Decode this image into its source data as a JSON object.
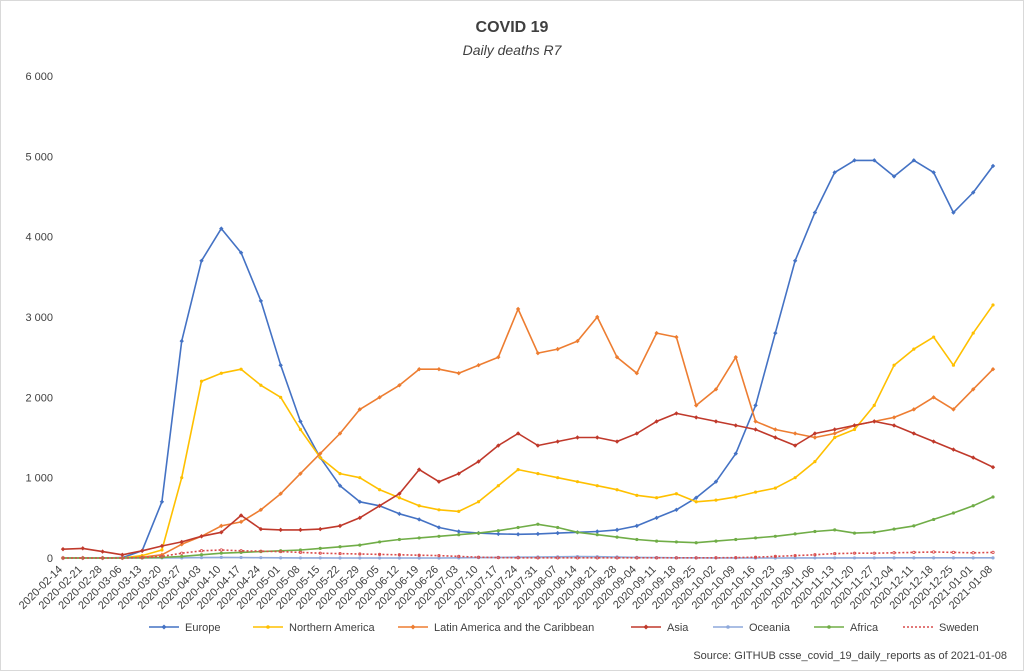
{
  "chart_data": {
    "type": "line",
    "title": "COVID 19",
    "subtitle": "Daily deaths R7",
    "ylim": [
      0,
      6000
    ],
    "y_ticks": [
      "0",
      "1 000",
      "2 000",
      "3 000",
      "4 000",
      "5 000",
      "6 000"
    ],
    "x_ticks": [
      "2020-02-14",
      "2020-02-21",
      "2020-02-28",
      "2020-03-06",
      "2020-03-13",
      "2020-03-20",
      "2020-03-27",
      "2020-04-03",
      "2020-04-10",
      "2020-04-17",
      "2020-04-24",
      "2020-05-01",
      "2020-05-08",
      "2020-05-15",
      "2020-05-22",
      "2020-05-29",
      "2020-06-05",
      "2020-06-12",
      "2020-06-19",
      "2020-06-26",
      "2020-07-03",
      "2020-07-10",
      "2020-07-17",
      "2020-07-24",
      "2020-07-31",
      "2020-08-07",
      "2020-08-14",
      "2020-08-21",
      "2020-08-28",
      "2020-09-04",
      "2020-09-11",
      "2020-09-18",
      "2020-09-25",
      "2020-10-02",
      "2020-10-09",
      "2020-10-16",
      "2020-10-23",
      "2020-10-30",
      "2020-11-06",
      "2020-11-13",
      "2020-11-20",
      "2020-11-27",
      "2020-12-04",
      "2020-12-11",
      "2020-12-18",
      "2020-12-25",
      "2021-01-01",
      "2021-01-08"
    ],
    "grid": false,
    "legend_position": "bottom",
    "series": [
      {
        "name": "Europe",
        "color": "#4472c4",
        "marker": "diamond",
        "values": [
          0,
          0,
          0,
          5,
          90,
          700,
          2700,
          3700,
          4100,
          3800,
          3200,
          2400,
          1700,
          1250,
          900,
          700,
          650,
          550,
          480,
          380,
          330,
          310,
          300,
          295,
          300,
          310,
          320,
          330,
          350,
          400,
          500,
          600,
          750,
          950,
          1300,
          1900,
          2800,
          3700,
          4300,
          4800,
          4950,
          4950,
          4750,
          4950,
          4800,
          4300,
          4550,
          4880
        ]
      },
      {
        "name": "Northern America",
        "color": "#ffc000",
        "marker": "dot",
        "values": [
          0,
          0,
          0,
          0,
          30,
          100,
          1000,
          2200,
          2300,
          2350,
          2150,
          2000,
          1600,
          1250,
          1050,
          1000,
          850,
          750,
          650,
          600,
          580,
          700,
          900,
          1100,
          1050,
          1000,
          950,
          900,
          850,
          780,
          750,
          800,
          700,
          720,
          760,
          820,
          870,
          1000,
          1200,
          1500,
          1600,
          1900,
          2400,
          2600,
          2750,
          2400,
          2800,
          3150
        ]
      },
      {
        "name": "Latin America and the Caribbean",
        "color": "#ed7d31",
        "marker": "diamond",
        "values": [
          0,
          0,
          0,
          0,
          10,
          40,
          170,
          270,
          400,
          450,
          600,
          800,
          1050,
          1300,
          1550,
          1850,
          2000,
          2150,
          2350,
          2350,
          2300,
          2400,
          2500,
          3100,
          2550,
          2600,
          2700,
          3000,
          2500,
          2300,
          2800,
          2750,
          1900,
          2100,
          2500,
          1700,
          1600,
          1550,
          1500,
          1550,
          1650,
          1700,
          1750,
          1850,
          2000,
          1850,
          2100,
          2350
        ]
      },
      {
        "name": "Asia",
        "color": "#c0392b",
        "marker": "diamond",
        "values": [
          110,
          120,
          80,
          40,
          90,
          150,
          200,
          270,
          320,
          530,
          360,
          350,
          350,
          360,
          400,
          500,
          650,
          800,
          1100,
          950,
          1050,
          1200,
          1400,
          1550,
          1400,
          1450,
          1500,
          1500,
          1450,
          1550,
          1700,
          1800,
          1750,
          1700,
          1650,
          1600,
          1500,
          1400,
          1550,
          1600,
          1650,
          1700,
          1650,
          1550,
          1450,
          1350,
          1250,
          1130
        ]
      },
      {
        "name": "Oceania",
        "color": "#8ea9db",
        "marker": "dot",
        "values": [
          0,
          0,
          0,
          0,
          0,
          1,
          2,
          5,
          8,
          6,
          4,
          2,
          1,
          1,
          0,
          0,
          0,
          0,
          0,
          0,
          2,
          5,
          8,
          10,
          12,
          15,
          18,
          16,
          12,
          8,
          5,
          3,
          2,
          1,
          1,
          0,
          0,
          1,
          1,
          1,
          1,
          1,
          2,
          2,
          2,
          2,
          2,
          2
        ]
      },
      {
        "name": "Africa",
        "color": "#70ad47",
        "marker": "dot",
        "values": [
          0,
          0,
          0,
          0,
          2,
          8,
          20,
          40,
          60,
          70,
          80,
          90,
          100,
          120,
          140,
          160,
          200,
          230,
          250,
          270,
          290,
          310,
          340,
          380,
          420,
          380,
          320,
          290,
          260,
          230,
          210,
          200,
          190,
          210,
          230,
          250,
          270,
          300,
          330,
          350,
          310,
          320,
          360,
          400,
          480,
          560,
          650,
          760
        ]
      },
      {
        "name": "Sweden",
        "color": "#d94b4b",
        "marker": "dotted",
        "values": [
          0,
          0,
          0,
          0,
          5,
          20,
          60,
          90,
          100,
          90,
          85,
          80,
          70,
          60,
          55,
          50,
          45,
          40,
          35,
          30,
          20,
          10,
          5,
          3,
          2,
          2,
          2,
          2,
          2,
          2,
          2,
          2,
          2,
          3,
          5,
          10,
          20,
          30,
          40,
          55,
          60,
          60,
          65,
          70,
          75,
          70,
          65,
          70
        ]
      }
    ]
  },
  "source_note": "Source: GITHUB csse_covid_19_daily_reports  as of 2021-01-08"
}
